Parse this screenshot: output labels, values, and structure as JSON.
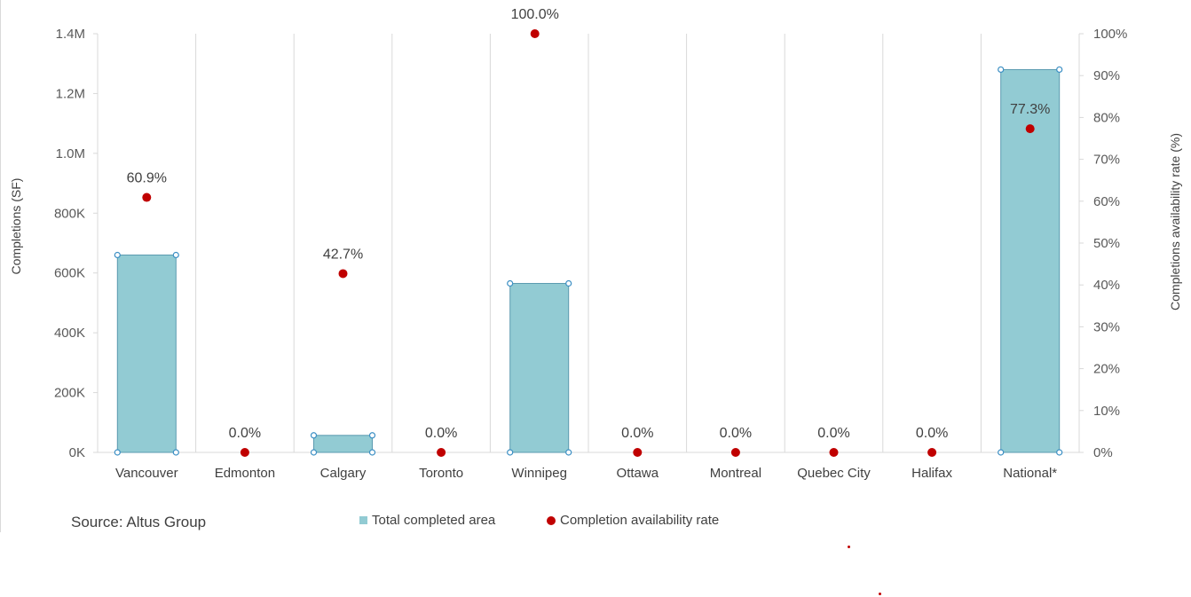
{
  "chart_data": {
    "type": "bar",
    "categories": [
      "Vancouver",
      "Edmonton",
      "Calgary",
      "Toronto",
      "Winnipeg",
      "Ottawa",
      "Montreal",
      "Quebec City",
      "Halifax",
      "National*"
    ],
    "series": [
      {
        "name": "Total completed area",
        "kind": "bar",
        "axis": "left",
        "values": [
          660000,
          0,
          57000,
          0,
          565000,
          0,
          0,
          0,
          0,
          1280000
        ],
        "color": "#92cbd3"
      },
      {
        "name": "Completion availability rate",
        "kind": "scatter",
        "axis": "right",
        "values": [
          60.9,
          0.0,
          42.7,
          0.0,
          100.0,
          0.0,
          0.0,
          0.0,
          0.0,
          77.3
        ],
        "labels": [
          "60.9%",
          "0.0%",
          "42.7%",
          "0.0%",
          "100.0%",
          "0.0%",
          "0.0%",
          "0.0%",
          "0.0%",
          "77.3%"
        ],
        "color": "#c00000"
      }
    ],
    "ylabel": "Completions (SF)",
    "y2label": "Completions availability rate (%)",
    "ylim": [
      0,
      1400000
    ],
    "y2lim": [
      0,
      100
    ],
    "yticks": [
      "0K",
      "200K",
      "400K",
      "600K",
      "800K",
      "1.0M",
      "1.2M",
      "1.4M"
    ],
    "y2ticks": [
      "0%",
      "10%",
      "20%",
      "30%",
      "40%",
      "50%",
      "60%",
      "70%",
      "80%",
      "90%",
      "100%"
    ],
    "grid": "vertical",
    "legend_position": "bottom"
  },
  "source": "Source: Altus Group",
  "legend": {
    "bar_label": "Total completed area",
    "dot_label": "Completion availability rate"
  },
  "colors": {
    "bar": "#92cbd3",
    "bar_edge": "#5b9bb0",
    "dot": "#c00000",
    "grid": "#d9d9d9"
  }
}
